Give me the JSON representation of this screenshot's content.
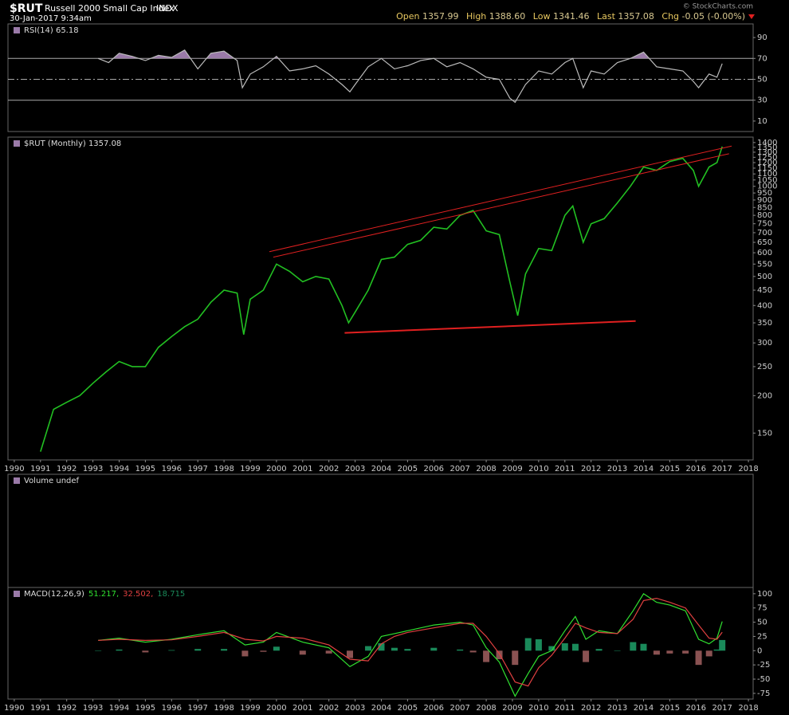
{
  "header": {
    "symbol": "$RUT",
    "name": "Russell 2000 Small Cap Index",
    "exchange": "INDX",
    "date": "30-Jan-2017 9:34am",
    "credit": "© StockCharts.com",
    "quote": [
      {
        "label": "Open",
        "value": "1357.99"
      },
      {
        "label": "High",
        "value": "1388.60"
      },
      {
        "label": "Low",
        "value": "1341.46"
      },
      {
        "label": "Last",
        "value": "1357.08"
      },
      {
        "label": "Chg",
        "value": "-0.05 (-0.00%)"
      }
    ]
  },
  "chart_data": [
    {
      "type": "line",
      "title": "RSI(14) 65.18",
      "xlim": [
        1989.76,
        2018.18
      ],
      "ylim": [
        0,
        100
      ],
      "yticks": [
        10,
        30,
        50,
        70,
        90
      ],
      "hlines": [
        {
          "value": 70,
          "style": "solid"
        },
        {
          "value": 50,
          "style": "dashdot"
        },
        {
          "value": 30,
          "style": "solid"
        }
      ],
      "fill_above": 70,
      "fill_color": "#9a7aa8",
      "x": [
        1993.2,
        1993.6,
        1994.0,
        1994.5,
        1995.0,
        1995.5,
        1996.0,
        1996.5,
        1997.0,
        1997.5,
        1998.0,
        1998.5,
        1998.7,
        1999.0,
        1999.5,
        2000.0,
        2000.5,
        2001.0,
        2001.5,
        2002.0,
        2002.5,
        2002.8,
        2003.0,
        2003.5,
        2004.0,
        2004.5,
        2005.0,
        2005.5,
        2006.0,
        2006.5,
        2007.0,
        2007.5,
        2008.0,
        2008.5,
        2008.9,
        2009.1,
        2009.5,
        2010.0,
        2010.5,
        2011.0,
        2011.3,
        2011.7,
        2012.0,
        2012.5,
        2013.0,
        2013.5,
        2014.0,
        2014.5,
        2015.0,
        2015.5,
        2015.9,
        2016.1,
        2016.5,
        2016.8,
        2017.0
      ],
      "series": [
        {
          "color": "#bbbbbb",
          "values": [
            70,
            66,
            75,
            72,
            68,
            73,
            71,
            78,
            60,
            75,
            77,
            68,
            42,
            55,
            62,
            72,
            58,
            60,
            63,
            55,
            45,
            38,
            45,
            62,
            70,
            60,
            63,
            68,
            70,
            62,
            66,
            60,
            52,
            50,
            32,
            28,
            45,
            58,
            55,
            66,
            70,
            42,
            58,
            55,
            66,
            70,
            76,
            62,
            60,
            58,
            48,
            42,
            55,
            52,
            65
          ]
        }
      ]
    },
    {
      "type": "line",
      "title": "$RUT (Monthly) 1357.08",
      "log_scale": true,
      "xlim": [
        1989.76,
        2018.18
      ],
      "ylim": [
        122,
        1460
      ],
      "yticks": [
        150,
        200,
        250,
        300,
        350,
        400,
        450,
        500,
        550,
        600,
        650,
        700,
        750,
        800,
        850,
        900,
        950,
        1000,
        1050,
        1100,
        1150,
        1200,
        1250,
        1300,
        1350,
        1400
      ],
      "xticks": [
        1990,
        1991,
        1992,
        1993,
        1994,
        1995,
        1996,
        1997,
        1998,
        1999,
        2000,
        2001,
        2002,
        2003,
        2004,
        2005,
        2006,
        2007,
        2008,
        2009,
        2010,
        2011,
        2012,
        2013,
        2014,
        2015,
        2016,
        2017,
        2018
      ],
      "x": [
        1991.0,
        1991.5,
        1992.0,
        1992.5,
        1993.0,
        1993.5,
        1994.0,
        1994.5,
        1995.0,
        1995.5,
        1996.0,
        1996.5,
        1997.0,
        1997.5,
        1998.0,
        1998.5,
        1998.75,
        1999.0,
        1999.5,
        2000.0,
        2000.5,
        2001.0,
        2001.5,
        2002.0,
        2002.5,
        2002.75,
        2003.0,
        2003.5,
        2004.0,
        2004.5,
        2005.0,
        2005.5,
        2006.0,
        2006.5,
        2007.0,
        2007.5,
        2008.0,
        2008.5,
        2008.9,
        2009.2,
        2009.5,
        2010.0,
        2010.5,
        2011.0,
        2011.3,
        2011.7,
        2012.0,
        2012.5,
        2013.0,
        2013.5,
        2014.0,
        2014.5,
        2015.0,
        2015.5,
        2015.9,
        2016.1,
        2016.5,
        2016.8,
        2017.0
      ],
      "series": [
        {
          "color": "#22c022",
          "values": [
            130,
            180,
            190,
            200,
            220,
            240,
            260,
            250,
            250,
            290,
            315,
            340,
            360,
            410,
            450,
            440,
            320,
            420,
            450,
            550,
            520,
            480,
            500,
            490,
            400,
            350,
            380,
            450,
            570,
            580,
            640,
            660,
            730,
            720,
            800,
            830,
            710,
            690,
            480,
            370,
            510,
            620,
            610,
            800,
            860,
            650,
            750,
            780,
            880,
            1000,
            1160,
            1130,
            1210,
            1240,
            1130,
            1000,
            1160,
            1200,
            1357
          ]
        }
      ],
      "trendlines": [
        {
          "color": "#e02020",
          "x": [
            1999.73,
            2017.36
          ],
          "y": [
            605,
            1363
          ]
        },
        {
          "color": "#e02020",
          "x": [
            1999.88,
            2017.26
          ],
          "y": [
            580,
            1285
          ]
        },
        {
          "color": "#e02020",
          "x": [
            2002.6,
            2013.7
          ],
          "y": [
            324,
            355
          ]
        }
      ]
    },
    {
      "type": "bar",
      "title": "Volume undef"
    },
    {
      "type": "line",
      "title": "MACD(12,26,9)",
      "xlim": [
        1989.76,
        2018.18
      ],
      "ylim": [
        -85,
        111
      ],
      "yticks": [
        -75,
        -50,
        -25,
        0,
        25,
        50,
        75,
        100
      ],
      "xticks": [
        1990,
        1991,
        1992,
        1993,
        1994,
        1995,
        1996,
        1997,
        1998,
        1999,
        2000,
        2001,
        2002,
        2003,
        2004,
        2005,
        2006,
        2007,
        2008,
        2009,
        2010,
        2011,
        2012,
        2013,
        2014,
        2015,
        2016,
        2017,
        2018
      ],
      "x": [
        1993.2,
        1994,
        1995,
        1996,
        1997,
        1998,
        1998.8,
        1999.5,
        2000,
        2001,
        2002,
        2002.8,
        2003.5,
        2004,
        2004.5,
        2005,
        2006,
        2007,
        2007.5,
        2008,
        2008.5,
        2009.1,
        2009.6,
        2010,
        2010.5,
        2011,
        2011.4,
        2011.8,
        2012.3,
        2013,
        2013.6,
        2014,
        2014.5,
        2015,
        2015.6,
        2016.1,
        2016.5,
        2016.8,
        2017
      ],
      "series": [
        {
          "style": "histogram",
          "color": "#1a8a5a",
          "negative_color": "#8a5252",
          "last_label": "18.715",
          "values": [
            0,
            2,
            -3,
            1,
            3,
            3,
            -10,
            -2,
            7,
            -7,
            -5,
            -13,
            8,
            13,
            5,
            3,
            5,
            2,
            -3,
            -20,
            -15,
            -25,
            22,
            20,
            8,
            13,
            12,
            -20,
            3,
            0,
            15,
            12,
            -7,
            -5,
            -5,
            -25,
            -10,
            2,
            18.7
          ]
        },
        {
          "style": "line",
          "color": "#30e030",
          "last_label": "51.217,",
          "values": [
            18,
            22,
            15,
            20,
            28,
            35,
            10,
            15,
            32,
            15,
            5,
            -28,
            -10,
            25,
            30,
            35,
            45,
            50,
            45,
            5,
            -20,
            -80,
            -40,
            -10,
            0,
            35,
            60,
            20,
            35,
            30,
            70,
            100,
            85,
            80,
            70,
            20,
            12,
            22,
            51.2
          ]
        },
        {
          "style": "line",
          "color": "#e04040",
          "last_label": "32.502,",
          "values": [
            18,
            20,
            18,
            19,
            25,
            32,
            20,
            17,
            25,
            22,
            10,
            -15,
            -18,
            12,
            25,
            32,
            40,
            48,
            48,
            25,
            -5,
            -55,
            -62,
            -30,
            -8,
            22,
            48,
            40,
            32,
            30,
            55,
            88,
            92,
            85,
            75,
            45,
            22,
            20,
            32.5
          ]
        }
      ]
    }
  ]
}
